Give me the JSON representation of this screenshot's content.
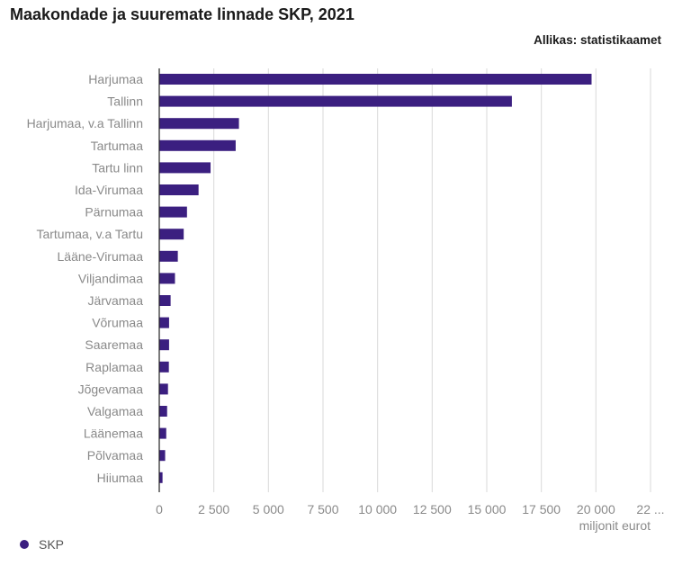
{
  "header": {
    "title": "Maakondade ja suuremate linnade SKP, 2021",
    "source": "Allikas: statistikaamet"
  },
  "colors": {
    "bar": "#3b1f80",
    "grid": "#d9d9d9",
    "axis": "#222222"
  },
  "chart_data": {
    "type": "bar",
    "orientation": "horizontal",
    "title": "Maakondade ja suuremate linnade SKP, 2021",
    "xlabel": "miljonit eurot",
    "ylabel": "",
    "xlim": [
      0,
      22500
    ],
    "grid": true,
    "legend_position": "bottom-left",
    "categories": [
      "Harjumaa",
      "Tallinn",
      "Harjumaa, v.a Tallinn",
      "Tartumaa",
      "Tartu linn",
      "Ida-Virumaa",
      "Pärnumaa",
      "Tartumaa, v.a Tartu",
      "Lääne-Virumaa",
      "Viljandimaa",
      "Järvamaa",
      "Võrumaa",
      "Saaremaa",
      "Raplamaa",
      "Jõgevamaa",
      "Valgamaa",
      "Läänemaa",
      "Põlvamaa",
      "Hiiumaa"
    ],
    "series": [
      {
        "name": "SKP",
        "values": [
          19800,
          16150,
          3650,
          3500,
          2350,
          1800,
          1270,
          1120,
          850,
          720,
          520,
          450,
          450,
          440,
          400,
          360,
          320,
          270,
          150
        ]
      }
    ],
    "x_ticks": [
      "0",
      "2 500",
      "5 000",
      "7 500",
      "10 000",
      "12 500",
      "15 000",
      "17 500",
      "20 000",
      "22 ..."
    ],
    "x_tick_values": [
      0,
      2500,
      5000,
      7500,
      10000,
      12500,
      15000,
      17500,
      20000,
      22500
    ]
  },
  "legend": {
    "label": "SKP"
  }
}
